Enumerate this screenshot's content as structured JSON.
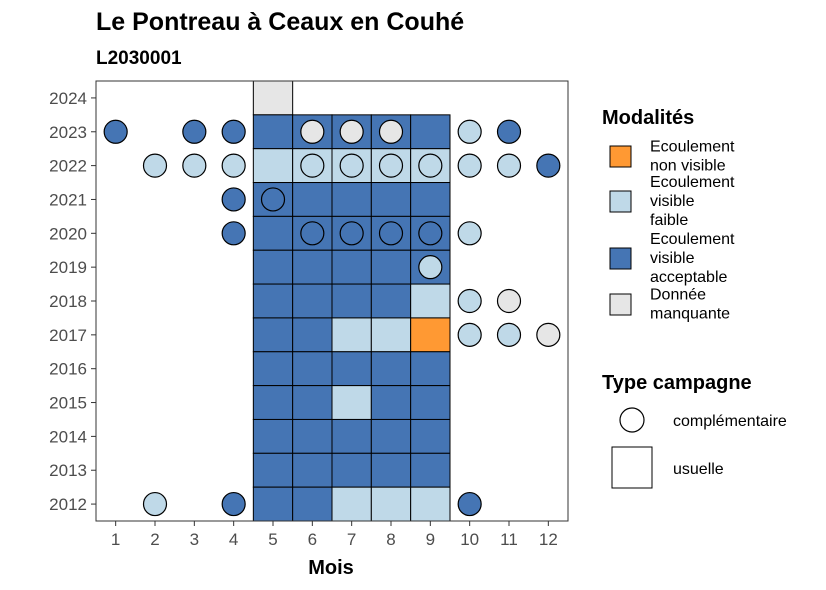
{
  "chart_data": {
    "type": "heatmap",
    "title": "Le Pontreau à Ceaux en Couhé",
    "subtitle": "L2030001",
    "xlabel": "Mois",
    "ylabel": "",
    "x_ticks": [
      "1",
      "2",
      "3",
      "4",
      "5",
      "6",
      "7",
      "8",
      "9",
      "10",
      "11",
      "12"
    ],
    "y_ticks": [
      "2012",
      "2013",
      "2014",
      "2015",
      "2016",
      "2017",
      "2018",
      "2019",
      "2020",
      "2021",
      "2022",
      "2023",
      "2024"
    ],
    "xlim": [
      0.5,
      12.5
    ],
    "ylim": [
      2011.5,
      2024.5
    ],
    "grid": false,
    "legend_position": "right",
    "modalites": {
      "title": "Modalités",
      "items": [
        {
          "key": "nonvisible",
          "lines": [
            "Ecoulement",
            "non visible"
          ],
          "color": "#FF9933"
        },
        {
          "key": "faible",
          "lines": [
            "Ecoulement",
            "visible",
            "faible"
          ],
          "color": "#BFD9E8"
        },
        {
          "key": "acceptable",
          "lines": [
            "Ecoulement",
            "visible",
            "acceptable"
          ],
          "color": "#4575B4"
        },
        {
          "key": "manquante",
          "lines": [
            "Donnée",
            "manquante"
          ],
          "color": "#E6E6E6"
        }
      ]
    },
    "campagne": {
      "title": "Type campagne",
      "items": [
        {
          "key": "complementaire",
          "label": "complémentaire",
          "shape": "circle"
        },
        {
          "key": "usuelle",
          "label": "usuelle",
          "shape": "square"
        }
      ]
    },
    "usuelle": [
      {
        "year": 2024,
        "month": 5,
        "mod": "manquante"
      },
      {
        "year": 2023,
        "month": 5,
        "mod": "acceptable"
      },
      {
        "year": 2023,
        "month": 6,
        "mod": "acceptable"
      },
      {
        "year": 2023,
        "month": 7,
        "mod": "acceptable"
      },
      {
        "year": 2023,
        "month": 8,
        "mod": "acceptable"
      },
      {
        "year": 2023,
        "month": 9,
        "mod": "acceptable"
      },
      {
        "year": 2022,
        "month": 5,
        "mod": "faible"
      },
      {
        "year": 2022,
        "month": 6,
        "mod": "faible"
      },
      {
        "year": 2022,
        "month": 7,
        "mod": "faible"
      },
      {
        "year": 2022,
        "month": 8,
        "mod": "faible"
      },
      {
        "year": 2022,
        "month": 9,
        "mod": "faible"
      },
      {
        "year": 2021,
        "month": 5,
        "mod": "acceptable"
      },
      {
        "year": 2021,
        "month": 6,
        "mod": "acceptable"
      },
      {
        "year": 2021,
        "month": 7,
        "mod": "acceptable"
      },
      {
        "year": 2021,
        "month": 8,
        "mod": "acceptable"
      },
      {
        "year": 2021,
        "month": 9,
        "mod": "acceptable"
      },
      {
        "year": 2020,
        "month": 5,
        "mod": "acceptable"
      },
      {
        "year": 2020,
        "month": 6,
        "mod": "acceptable"
      },
      {
        "year": 2020,
        "month": 7,
        "mod": "acceptable"
      },
      {
        "year": 2020,
        "month": 8,
        "mod": "acceptable"
      },
      {
        "year": 2020,
        "month": 9,
        "mod": "acceptable"
      },
      {
        "year": 2019,
        "month": 5,
        "mod": "acceptable"
      },
      {
        "year": 2019,
        "month": 6,
        "mod": "acceptable"
      },
      {
        "year": 2019,
        "month": 7,
        "mod": "acceptable"
      },
      {
        "year": 2019,
        "month": 8,
        "mod": "acceptable"
      },
      {
        "year": 2019,
        "month": 9,
        "mod": "acceptable"
      },
      {
        "year": 2018,
        "month": 5,
        "mod": "acceptable"
      },
      {
        "year": 2018,
        "month": 6,
        "mod": "acceptable"
      },
      {
        "year": 2018,
        "month": 7,
        "mod": "acceptable"
      },
      {
        "year": 2018,
        "month": 8,
        "mod": "acceptable"
      },
      {
        "year": 2018,
        "month": 9,
        "mod": "faible"
      },
      {
        "year": 2017,
        "month": 5,
        "mod": "acceptable"
      },
      {
        "year": 2017,
        "month": 6,
        "mod": "acceptable"
      },
      {
        "year": 2017,
        "month": 7,
        "mod": "faible"
      },
      {
        "year": 2017,
        "month": 8,
        "mod": "faible"
      },
      {
        "year": 2017,
        "month": 9,
        "mod": "nonvisible"
      },
      {
        "year": 2016,
        "month": 5,
        "mod": "acceptable"
      },
      {
        "year": 2016,
        "month": 6,
        "mod": "acceptable"
      },
      {
        "year": 2016,
        "month": 7,
        "mod": "acceptable"
      },
      {
        "year": 2016,
        "month": 8,
        "mod": "acceptable"
      },
      {
        "year": 2016,
        "month": 9,
        "mod": "acceptable"
      },
      {
        "year": 2015,
        "month": 5,
        "mod": "acceptable"
      },
      {
        "year": 2015,
        "month": 6,
        "mod": "acceptable"
      },
      {
        "year": 2015,
        "month": 7,
        "mod": "faible"
      },
      {
        "year": 2015,
        "month": 8,
        "mod": "acceptable"
      },
      {
        "year": 2015,
        "month": 9,
        "mod": "acceptable"
      },
      {
        "year": 2014,
        "month": 5,
        "mod": "acceptable"
      },
      {
        "year": 2014,
        "month": 6,
        "mod": "acceptable"
      },
      {
        "year": 2014,
        "month": 7,
        "mod": "acceptable"
      },
      {
        "year": 2014,
        "month": 8,
        "mod": "acceptable"
      },
      {
        "year": 2014,
        "month": 9,
        "mod": "acceptable"
      },
      {
        "year": 2013,
        "month": 5,
        "mod": "acceptable"
      },
      {
        "year": 2013,
        "month": 6,
        "mod": "acceptable"
      },
      {
        "year": 2013,
        "month": 7,
        "mod": "acceptable"
      },
      {
        "year": 2013,
        "month": 8,
        "mod": "acceptable"
      },
      {
        "year": 2013,
        "month": 9,
        "mod": "acceptable"
      },
      {
        "year": 2012,
        "month": 5,
        "mod": "acceptable"
      },
      {
        "year": 2012,
        "month": 6,
        "mod": "acceptable"
      },
      {
        "year": 2012,
        "month": 7,
        "mod": "faible"
      },
      {
        "year": 2012,
        "month": 8,
        "mod": "faible"
      },
      {
        "year": 2012,
        "month": 9,
        "mod": "faible"
      }
    ],
    "complementaire": [
      {
        "year": 2023,
        "month": 1,
        "mod": "acceptable"
      },
      {
        "year": 2023,
        "month": 3,
        "mod": "acceptable"
      },
      {
        "year": 2023,
        "month": 4,
        "mod": "acceptable"
      },
      {
        "year": 2023,
        "month": 6,
        "mod": "manquante"
      },
      {
        "year": 2023,
        "month": 7,
        "mod": "manquante"
      },
      {
        "year": 2023,
        "month": 8,
        "mod": "manquante"
      },
      {
        "year": 2023,
        "month": 10,
        "mod": "faible"
      },
      {
        "year": 2023,
        "month": 11,
        "mod": "acceptable"
      },
      {
        "year": 2022,
        "month": 2,
        "mod": "faible"
      },
      {
        "year": 2022,
        "month": 3,
        "mod": "faible"
      },
      {
        "year": 2022,
        "month": 4,
        "mod": "faible"
      },
      {
        "year": 2022,
        "month": 6,
        "mod": "faible"
      },
      {
        "year": 2022,
        "month": 7,
        "mod": "faible"
      },
      {
        "year": 2022,
        "month": 8,
        "mod": "faible"
      },
      {
        "year": 2022,
        "month": 9,
        "mod": "faible"
      },
      {
        "year": 2022,
        "month": 10,
        "mod": "faible"
      },
      {
        "year": 2022,
        "month": 11,
        "mod": "faible"
      },
      {
        "year": 2022,
        "month": 12,
        "mod": "acceptable"
      },
      {
        "year": 2021,
        "month": 4,
        "mod": "acceptable"
      },
      {
        "year": 2021,
        "month": 5,
        "mod": "acceptable"
      },
      {
        "year": 2020,
        "month": 4,
        "mod": "acceptable"
      },
      {
        "year": 2020,
        "month": 6,
        "mod": "acceptable"
      },
      {
        "year": 2020,
        "month": 7,
        "mod": "acceptable"
      },
      {
        "year": 2020,
        "month": 8,
        "mod": "acceptable"
      },
      {
        "year": 2020,
        "month": 9,
        "mod": "acceptable"
      },
      {
        "year": 2020,
        "month": 10,
        "mod": "faible"
      },
      {
        "year": 2019,
        "month": 9,
        "mod": "faible"
      },
      {
        "year": 2018,
        "month": 10,
        "mod": "faible"
      },
      {
        "year": 2018,
        "month": 11,
        "mod": "manquante"
      },
      {
        "year": 2017,
        "month": 10,
        "mod": "faible"
      },
      {
        "year": 2017,
        "month": 11,
        "mod": "faible"
      },
      {
        "year": 2017,
        "month": 12,
        "mod": "manquante"
      },
      {
        "year": 2012,
        "month": 2,
        "mod": "faible"
      },
      {
        "year": 2012,
        "month": 4,
        "mod": "acceptable"
      },
      {
        "year": 2012,
        "month": 10,
        "mod": "acceptable"
      }
    ]
  }
}
